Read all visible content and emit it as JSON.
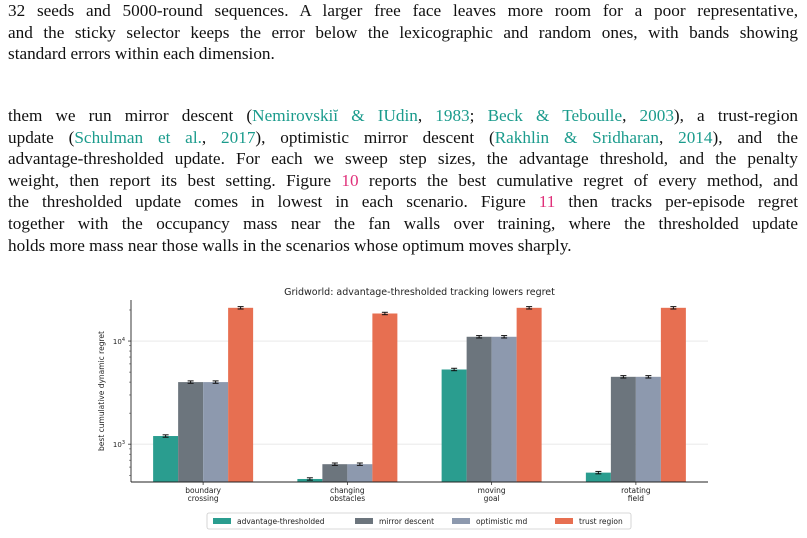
{
  "paragraph1": {
    "lines": [
      "32 seeds and 5000-round sequences. A larger free face leaves more room for a poor representative,",
      "and the sticky selector keeps the error below the lexicographic and random ones, with bands showing",
      "standard errors within each dimension."
    ]
  },
  "paragraph2": {
    "line1_a": "them we run mirror descent (",
    "cite_nemirovskii": "Nemirovskiĭ & IUdin",
    "line1_b": ", ",
    "year_1983": "1983",
    "line1_c": "; ",
    "cite_beck": "Beck & Teboulle",
    "line1_d": ", ",
    "year_2003": "2003",
    "line1_e": "), a trust-region",
    "line2_a": "update (",
    "cite_schulman": "Schulman et al.",
    "line2_b": ", ",
    "year_2017": "2017",
    "line2_c": "), optimistic mirror descent (",
    "cite_rakhlin": "Rakhlin & Sridharan",
    "line2_d": ", ",
    "year_2014": "2014",
    "line2_e": "), and the",
    "line3": "advantage-thresholded update. For each we sweep step sizes, the advantage threshold, and the penalty",
    "line4_a": "weight, then report its best setting. Figure ",
    "fig_ref_10": "10",
    "line4_b": " reports the best cumulative regret of every method, and",
    "line5_a": "the thresholded update comes in lowest in each scenario. Figure ",
    "fig_ref_11": "11",
    "line5_b": " then tracks per-episode regret",
    "line6": "together with the occupancy mass near the fan walls over training, where the thresholded update",
    "line7": "holds more mass near those walls in the scenarios whose optimum moves sharply."
  },
  "colors": {
    "advantage_thresholded": "#2a9d8f",
    "mirror_descent": "#6c757d",
    "optimistic_md": "#8d99ae",
    "trust_region": "#e76f51",
    "citation": "#1a9b8c",
    "figure_ref": "#e0307a"
  },
  "chart_data": {
    "type": "bar",
    "title": "Gridworld: advantage-thresholded tracking lowers regret",
    "ylabel": "best cumulative dynamic regret",
    "xlabel": "",
    "yscale": "log",
    "ylim": [
      430,
      25000
    ],
    "yticks": [
      {
        "value": 1000,
        "base": "10",
        "exp": "3"
      },
      {
        "value": 10000,
        "base": "10",
        "exp": "4"
      }
    ],
    "categories": [
      [
        "boundary",
        "crossing"
      ],
      [
        "changing",
        "obstacles"
      ],
      [
        "moving",
        "goal"
      ],
      [
        "rotating",
        "field"
      ]
    ],
    "series": [
      {
        "name": "advantage-thresholded",
        "values": [
          1200,
          460,
          5300,
          530
        ]
      },
      {
        "name": "mirror descent",
        "values": [
          4000,
          640,
          11000,
          4500
        ]
      },
      {
        "name": "optimistic md",
        "values": [
          4000,
          640,
          11000,
          4500
        ]
      },
      {
        "name": "trust region",
        "values": [
          21000,
          18500,
          21000,
          21000
        ]
      }
    ],
    "grid": true,
    "legend": "bottom-center",
    "error_bars": true
  }
}
